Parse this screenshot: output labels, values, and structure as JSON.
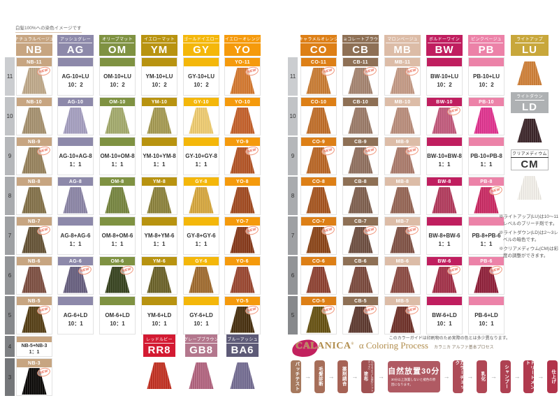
{
  "page": {
    "top_note": "白髪100%への染色イメージです",
    "print_note": "このカラーガイドは印刷物のため実際の色とは多少異なります。"
  },
  "badges": {
    "new": "NEW"
  },
  "left_block": {
    "row_numbers": [
      "11",
      "10",
      "9",
      "8",
      "7",
      "6",
      "5",
      "4",
      "3"
    ],
    "columns": [
      {
        "code": "NB",
        "kana": "ナチュラルベージュ",
        "color": "#c7a581",
        "cells": [
          {
            "type": "swatch",
            "label": "NB-11",
            "color": "#bfa98a",
            "new": true
          },
          {
            "type": "swatch",
            "label": "NB-10",
            "color": "#a6916f"
          },
          {
            "type": "swatch",
            "label": "NB-9",
            "color": "#97825c",
            "new": true
          },
          {
            "type": "swatch",
            "label": "NB-8",
            "color": "#837149"
          },
          {
            "type": "swatch",
            "label": "NB-7",
            "color": "#655336",
            "new": true
          },
          {
            "type": "swatch",
            "label": "NB-6",
            "color": "#7d4f41"
          },
          {
            "type": "swatch",
            "label": "NB-5",
            "color": "#563f16",
            "new": true
          },
          {
            "type": "mix",
            "line1": "NB-5+NB-3",
            "line2": "1：1"
          },
          {
            "type": "swatch",
            "label": "NB-3",
            "color": "#0c0a08",
            "new": true
          }
        ]
      },
      {
        "code": "AG",
        "kana": "アッシュグレー",
        "color": "#8d89aa",
        "cells": [
          {
            "type": "mix",
            "line1": "AG-10+LU",
            "line2": "10：2"
          },
          {
            "type": "swatch",
            "label": "AG-10",
            "color": "#a59fc0"
          },
          {
            "type": "mix",
            "line1": "AG-10+AG-8",
            "line2": "1：1"
          },
          {
            "type": "swatch",
            "label": "AG-8",
            "color": "#8b85a6"
          },
          {
            "type": "mix",
            "line1": "AG-8+AG-6",
            "line2": "1：1"
          },
          {
            "type": "swatch",
            "label": "AG-6",
            "color": "#675f7f",
            "new": true
          },
          {
            "type": "mix",
            "line1": "AG-6+LD",
            "line2": "10：1"
          },
          null,
          null
        ]
      },
      {
        "code": "OM",
        "kana": "オリーブマット",
        "color": "#7f9242",
        "cells": [
          {
            "type": "mix",
            "line1": "OM-10+LU",
            "line2": "10：2"
          },
          {
            "type": "swatch",
            "label": "OM-10",
            "color": "#a3aa6c"
          },
          {
            "type": "mix",
            "line1": "OM-10+OM-8",
            "line2": "1：1"
          },
          {
            "type": "swatch",
            "label": "OM-8",
            "color": "#76853f"
          },
          {
            "type": "mix",
            "line1": "OM-8+OM-6",
            "line2": "1：1"
          },
          {
            "type": "swatch",
            "label": "OM-6",
            "color": "#37431f",
            "new": true
          },
          {
            "type": "mix",
            "line1": "OM-6+LD",
            "line2": "10：1"
          },
          null,
          null
        ]
      },
      {
        "code": "YM",
        "kana": "イエローマット",
        "color": "#b89310",
        "cells": [
          {
            "type": "mix",
            "line1": "YM-10+LU",
            "line2": "10：2"
          },
          {
            "type": "swatch",
            "label": "YM-10",
            "color": "#a59a52"
          },
          {
            "type": "mix",
            "line1": "YM-10+YM-8",
            "line2": "1：1"
          },
          {
            "type": "swatch",
            "label": "YM-8",
            "color": "#8c823c"
          },
          {
            "type": "mix",
            "line1": "YM-8+YM-6",
            "line2": "1：1"
          },
          {
            "type": "swatch",
            "label": "YM-6",
            "color": "#6b6229"
          },
          {
            "type": "mix",
            "line1": "YM-6+LD",
            "line2": "10：1"
          },
          null,
          null
        ]
      },
      {
        "code": "GY",
        "kana": "ゴールドイエロー",
        "color": "#f4b70a",
        "cells": [
          {
            "type": "mix",
            "line1": "GY-10+LU",
            "line2": "10：2"
          },
          {
            "type": "swatch",
            "label": "GY-10",
            "color": "#eecb70"
          },
          {
            "type": "mix",
            "line1": "GY-10+GY-8",
            "line2": "1：1"
          },
          {
            "type": "swatch",
            "label": "GY-8",
            "color": "#d6a73e"
          },
          {
            "type": "mix",
            "line1": "GY-8+GY-6",
            "line2": "1：1"
          },
          {
            "type": "swatch",
            "label": "GY-6",
            "color": "#a06b2f"
          },
          {
            "type": "mix",
            "line1": "GY-6+LD",
            "line2": "10：1"
          },
          null,
          null
        ]
      },
      {
        "code": "YO",
        "kana": "イエローオレンジ",
        "color": "#f59a0c",
        "cells": [
          {
            "type": "swatch",
            "label": "YO-11",
            "color": "#d4782f",
            "new": true
          },
          {
            "type": "swatch",
            "label": "YO-10",
            "color": "#c4602a"
          },
          {
            "type": "swatch",
            "label": "YO-9",
            "color": "#b35425",
            "new": true
          },
          {
            "type": "swatch",
            "label": "YO-8",
            "color": "#a14a20"
          },
          {
            "type": "swatch",
            "label": "YO-7",
            "color": "#86391a",
            "new": true
          },
          {
            "type": "swatch",
            "label": "YO-6",
            "color": "#9a4730"
          },
          {
            "type": "swatch",
            "label": "YO-5",
            "color": "#48300f",
            "new": true
          },
          null,
          null
        ]
      }
    ]
  },
  "right_block": {
    "row_numbers": [
      "11",
      "10",
      "9",
      "8",
      "7",
      "6",
      "5"
    ],
    "columns": [
      {
        "code": "CO",
        "kana": "キャラメルオレンジ",
        "color": "#dd7f16",
        "cells": [
          {
            "type": "swatch",
            "label": "CO-11",
            "color": "#c97c33",
            "new": true
          },
          {
            "type": "swatch",
            "label": "CO-10",
            "color": "#c06e29"
          },
          {
            "type": "swatch",
            "label": "CO-9",
            "color": "#b96625",
            "new": true
          },
          {
            "type": "swatch",
            "label": "CO-8",
            "color": "#a6551f"
          },
          {
            "type": "swatch",
            "label": "CO-7",
            "color": "#8b4518",
            "new": true
          },
          {
            "type": "swatch",
            "label": "CO-6",
            "color": "#8e4232"
          },
          {
            "type": "swatch",
            "label": "CO-5",
            "color": "#675212",
            "new": true
          }
        ]
      },
      {
        "code": "CB",
        "kana": "チョコレートブラウン",
        "color": "#8e7055",
        "cells": [
          {
            "type": "swatch",
            "label": "CB-11",
            "color": "#a58470",
            "new": true
          },
          {
            "type": "swatch",
            "label": "CB-10",
            "color": "#9b7b68"
          },
          {
            "type": "swatch",
            "label": "CB-9",
            "color": "#90705f",
            "new": true
          },
          {
            "type": "swatch",
            "label": "CB-8",
            "color": "#7f604f"
          },
          {
            "type": "swatch",
            "label": "CB-7",
            "color": "#6e4f41",
            "new": true
          },
          {
            "type": "swatch",
            "label": "CB-6",
            "color": "#7b4a3d"
          },
          {
            "type": "swatch",
            "label": "CB-5",
            "color": "#5e3a30",
            "new": true
          }
        ]
      },
      {
        "code": "MB",
        "kana": "マロンベージュ",
        "color": "#dcbca7",
        "cells": [
          {
            "type": "swatch",
            "label": "MB-11",
            "color": "#c49a85",
            "new": true
          },
          {
            "type": "swatch",
            "label": "MB-10",
            "color": "#b98d7b"
          },
          {
            "type": "swatch",
            "label": "MB-9",
            "color": "#ab7b6b",
            "new": true
          },
          {
            "type": "swatch",
            "label": "MB-8",
            "color": "#956555"
          },
          {
            "type": "swatch",
            "label": "MB-7",
            "color": "#805245",
            "new": true
          },
          {
            "type": "swatch",
            "label": "MB-6",
            "color": "#8c4b43"
          },
          {
            "type": "swatch",
            "label": "MB-5",
            "color": "#6f3129",
            "new": true
          }
        ]
      },
      {
        "code": "BW",
        "kana": "ボルドーワイン",
        "color": "#c01e5f",
        "cells": [
          {
            "type": "mix",
            "line1": "BW-10+LU",
            "line2": "10：2"
          },
          {
            "type": "swatch",
            "label": "BW-10",
            "color": "#c25a7c",
            "new": true
          },
          {
            "type": "mix",
            "line1": "BW-10+BW-8",
            "line2": "1：1"
          },
          {
            "type": "swatch",
            "label": "BW-8",
            "color": "#b23a5c"
          },
          {
            "type": "mix",
            "line1": "BW-8+BW-6",
            "line2": "1：1"
          },
          {
            "type": "swatch",
            "label": "BW-6",
            "color": "#a23048",
            "new": true
          },
          {
            "type": "mix",
            "line1": "BW-6+LD",
            "line2": "10：1"
          }
        ]
      },
      {
        "code": "PB",
        "kana": "ピンクベージュ",
        "color": "#ec82a8",
        "cells": [
          {
            "type": "mix",
            "line1": "PB-10+LU",
            "line2": "10：2"
          },
          {
            "type": "swatch",
            "label": "PB-10",
            "color": "#e0338f"
          },
          {
            "type": "mix",
            "line1": "PB-10+PB-8",
            "line2": "1：1"
          },
          {
            "type": "swatch",
            "label": "PB-8",
            "color": "#ca2a63",
            "new": true
          },
          {
            "type": "mix",
            "line1": "PB-8+PB-6",
            "line2": "1：1"
          },
          {
            "type": "swatch",
            "label": "PB-6",
            "color": "#90203a",
            "new": true
          },
          {
            "type": "mix",
            "line1": "PB-6+LD",
            "line2": "10：1"
          }
        ]
      }
    ]
  },
  "lighteners": [
    {
      "code": "LU",
      "kana": "ライトアップ",
      "color": "#c8a73b",
      "text_color": "#ffffff",
      "swatch": "#cf8038"
    },
    {
      "code": "LD",
      "kana": "ライトダウン",
      "color": "#aeb1b3",
      "text_color": "#ffffff",
      "swatch": "#3c262a"
    },
    {
      "code": "CM",
      "kana": "クリアメディウム",
      "color": "#ffffff",
      "text_color": "#333333",
      "swatch": "#f2efe9",
      "outlined": true
    }
  ],
  "notes": [
    "※ライトアップ(LU)は10～11レベルのブリーチ剤です。",
    "※ライトダウン(LD)は2～3レベルの暗色です。",
    "※クリアメディウム(CM)は彩度の調整ができます。"
  ],
  "accent_colors": [
    {
      "code": "RR8",
      "kana": "レッドルビー",
      "color": "#d31a32",
      "swatch": "#c23122"
    },
    {
      "code": "GB8",
      "kana": "グレープブラウン",
      "color": "#b3778d",
      "swatch": "#b2647f"
    },
    {
      "code": "BA6",
      "kana": "ブルーアッシュ",
      "color": "#5d5a77",
      "swatch": "#746d92"
    }
  ],
  "process": {
    "brand": "CALANICA",
    "reg_mark": "®",
    "title": "α Coloring Process",
    "subtitle": "カラニカ アルファ基本プロセス",
    "steps": [
      {
        "label": "パッチテスト",
        "color": "#a6795e"
      },
      {
        "label": "毛髪診断",
        "color": "#a66e59"
      },
      {
        "label": "薬剤調合",
        "color": "#a66255"
      },
      {
        "label": "塗布",
        "color": "#a05152",
        "note": "のせるように塗布(ソフトタッチ)"
      },
      {
        "label": "自然放置30分",
        "color": "#b05a63",
        "big": true,
        "note": "30分以上放置しないと褪色の原因になります。"
      },
      {
        "label": "カラーチェック",
        "color": "#ae4c58"
      },
      {
        "label": "乳化",
        "color": "#b04755"
      },
      {
        "label": "シャンプー",
        "color": "#ae4152"
      },
      {
        "label": "トリートメント",
        "color": "#b03a4e"
      },
      {
        "label": "仕上げ",
        "color": "#b1334a"
      }
    ]
  }
}
